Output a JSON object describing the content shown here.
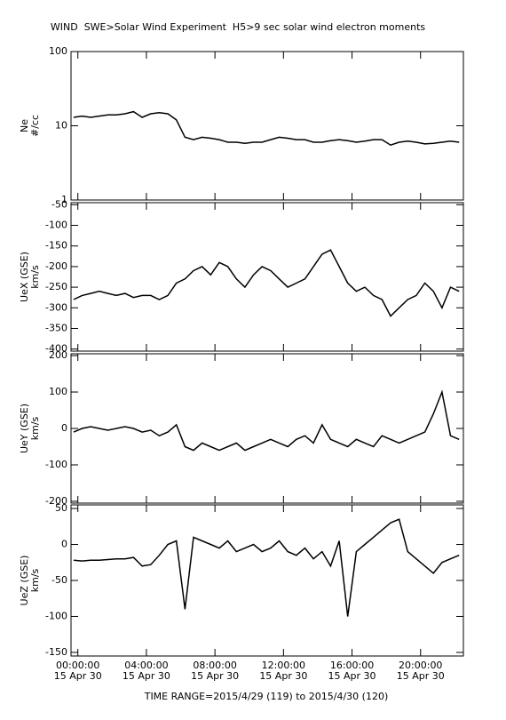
{
  "title": "WIND  SWE>Solar Wind Experiment  H5>9 sec solar wind electron moments",
  "footer": "TIME RANGE=2015/4/29 (119) to 2015/4/30 (120)",
  "chart_data": [
    {
      "type": "line",
      "ylabel": "Ne",
      "yunit": "#/cc",
      "log_y": true,
      "color": "#000000",
      "x": [
        -0.25,
        0.25,
        0.75,
        1.25,
        1.75,
        2.25,
        2.75,
        3.25,
        3.75,
        4.25,
        4.75,
        5.25,
        5.75,
        6.25,
        6.75,
        7.25,
        7.75,
        8.25,
        8.75,
        9.25,
        9.75,
        10.25,
        10.75,
        11.25,
        11.75,
        12.25,
        12.75,
        13.25,
        13.75,
        14.25,
        14.75,
        15.25,
        15.75,
        16.25,
        16.75,
        17.25,
        17.75,
        18.25,
        18.75,
        19.25,
        19.75,
        20.25,
        20.75,
        21.25,
        21.75,
        22.25
      ],
      "values": [
        13,
        13.5,
        13,
        13.5,
        14,
        14,
        14.5,
        15.5,
        13,
        14.5,
        15,
        14.5,
        12,
        7,
        6.5,
        7,
        6.8,
        6.5,
        6,
        6,
        5.8,
        6,
        6,
        6.5,
        7,
        6.8,
        6.5,
        6.5,
        6,
        6,
        6.3,
        6.5,
        6.3,
        6,
        6.2,
        6.5,
        6.5,
        5.5,
        6,
        6.2,
        6,
        5.7,
        5.8,
        6,
        6.2,
        6
      ],
      "xlim": [
        -0.4,
        22.5
      ],
      "ylim": [
        1,
        100
      ],
      "yticks": [
        1,
        10,
        100
      ]
    },
    {
      "type": "line",
      "ylabel": "UeX (GSE)",
      "yunit": "km/s",
      "color": "#000000",
      "x": [
        -0.25,
        0.25,
        0.75,
        1.25,
        1.75,
        2.25,
        2.75,
        3.25,
        3.75,
        4.25,
        4.75,
        5.25,
        5.75,
        6.25,
        6.75,
        7.25,
        7.75,
        8.25,
        8.75,
        9.25,
        9.75,
        10.25,
        10.75,
        11.25,
        11.75,
        12.25,
        12.75,
        13.25,
        13.75,
        14.25,
        14.75,
        15.25,
        15.75,
        16.25,
        16.75,
        17.25,
        17.75,
        18.25,
        18.75,
        19.25,
        19.75,
        20.25,
        20.75,
        21.25,
        21.75,
        22.25
      ],
      "values": [
        -280,
        -270,
        -265,
        -260,
        -265,
        -270,
        -265,
        -275,
        -270,
        -270,
        -280,
        -270,
        -240,
        -230,
        -210,
        -200,
        -220,
        -190,
        -200,
        -230,
        -250,
        -220,
        -200,
        -210,
        -230,
        -250,
        -240,
        -230,
        -200,
        -170,
        -160,
        -200,
        -240,
        -260,
        -250,
        -270,
        -280,
        -320,
        -300,
        -280,
        -270,
        -240,
        -260,
        -300,
        -250,
        -260
      ],
      "xlim": [
        -0.4,
        22.5
      ],
      "ylim": [
        -405,
        -45
      ],
      "yticks": [
        -400,
        -350,
        -300,
        -250,
        -200,
        -150,
        -100,
        -50
      ]
    },
    {
      "type": "line",
      "ylabel": "UeY (GSE)",
      "yunit": "km/s",
      "color": "#000000",
      "x": [
        -0.25,
        0.25,
        0.75,
        1.25,
        1.75,
        2.25,
        2.75,
        3.25,
        3.75,
        4.25,
        4.75,
        5.25,
        5.75,
        6.25,
        6.75,
        7.25,
        7.75,
        8.25,
        8.75,
        9.25,
        9.75,
        10.25,
        10.75,
        11.25,
        11.75,
        12.25,
        12.75,
        13.25,
        13.75,
        14.25,
        14.75,
        15.25,
        15.75,
        16.25,
        16.75,
        17.25,
        17.75,
        18.25,
        18.75,
        19.25,
        19.75,
        20.25,
        20.75,
        21.25,
        21.75,
        22.25
      ],
      "values": [
        -10,
        0,
        5,
        0,
        -5,
        0,
        5,
        0,
        -10,
        -5,
        -20,
        -10,
        10,
        -50,
        -60,
        -40,
        -50,
        -60,
        -50,
        -40,
        -60,
        -50,
        -40,
        -30,
        -40,
        -50,
        -30,
        -20,
        -40,
        10,
        -30,
        -40,
        -50,
        -30,
        -40,
        -50,
        -20,
        -30,
        -40,
        -30,
        -20,
        -10,
        40,
        100,
        -20,
        -30
      ],
      "xlim": [
        -0.4,
        22.5
      ],
      "ylim": [
        -205,
        205
      ],
      "yticks": [
        -200,
        -100,
        0,
        100,
        200
      ]
    },
    {
      "type": "line",
      "ylabel": "UeZ (GSE)",
      "yunit": "km/s",
      "color": "#000000",
      "x": [
        -0.25,
        0.25,
        0.75,
        1.25,
        1.75,
        2.25,
        2.75,
        3.25,
        3.75,
        4.25,
        4.75,
        5.25,
        5.75,
        6.25,
        6.75,
        7.25,
        7.75,
        8.25,
        8.75,
        9.25,
        9.75,
        10.25,
        10.75,
        11.25,
        11.75,
        12.25,
        12.75,
        13.25,
        13.75,
        14.25,
        14.75,
        15.25,
        15.75,
        16.25,
        16.75,
        17.25,
        17.75,
        18.25,
        18.75,
        19.25,
        19.75,
        20.25,
        20.75,
        21.25,
        21.75,
        22.25
      ],
      "values": [
        -22,
        -23,
        -22,
        -22,
        -21,
        -20,
        -20,
        -18,
        -30,
        -28,
        -15,
        0,
        5,
        -90,
        10,
        5,
        0,
        -5,
        5,
        -10,
        -5,
        0,
        -10,
        -5,
        5,
        -10,
        -15,
        -5,
        -20,
        -10,
        -30,
        5,
        -100,
        -10,
        0,
        10,
        20,
        30,
        35,
        -10,
        -20,
        -30,
        -40,
        -25,
        -20,
        -15
      ],
      "xlim": [
        -0.4,
        22.5
      ],
      "ylim": [
        -155,
        55
      ],
      "yticks": [
        -150,
        -100,
        -50,
        0,
        50
      ],
      "xticks": [
        {
          "value": 0,
          "label": "00:00:00",
          "date": "15 Apr 30"
        },
        {
          "value": 4,
          "label": "04:00:00",
          "date": "15 Apr 30"
        },
        {
          "value": 8,
          "label": "08:00:00",
          "date": "15 Apr 30"
        },
        {
          "value": 12,
          "label": "12:00:00",
          "date": "15 Apr 30"
        },
        {
          "value": 16,
          "label": "16:00:00",
          "date": "15 Apr 30"
        },
        {
          "value": 20,
          "label": "20:00:00",
          "date": "15 Apr 30"
        }
      ]
    }
  ]
}
